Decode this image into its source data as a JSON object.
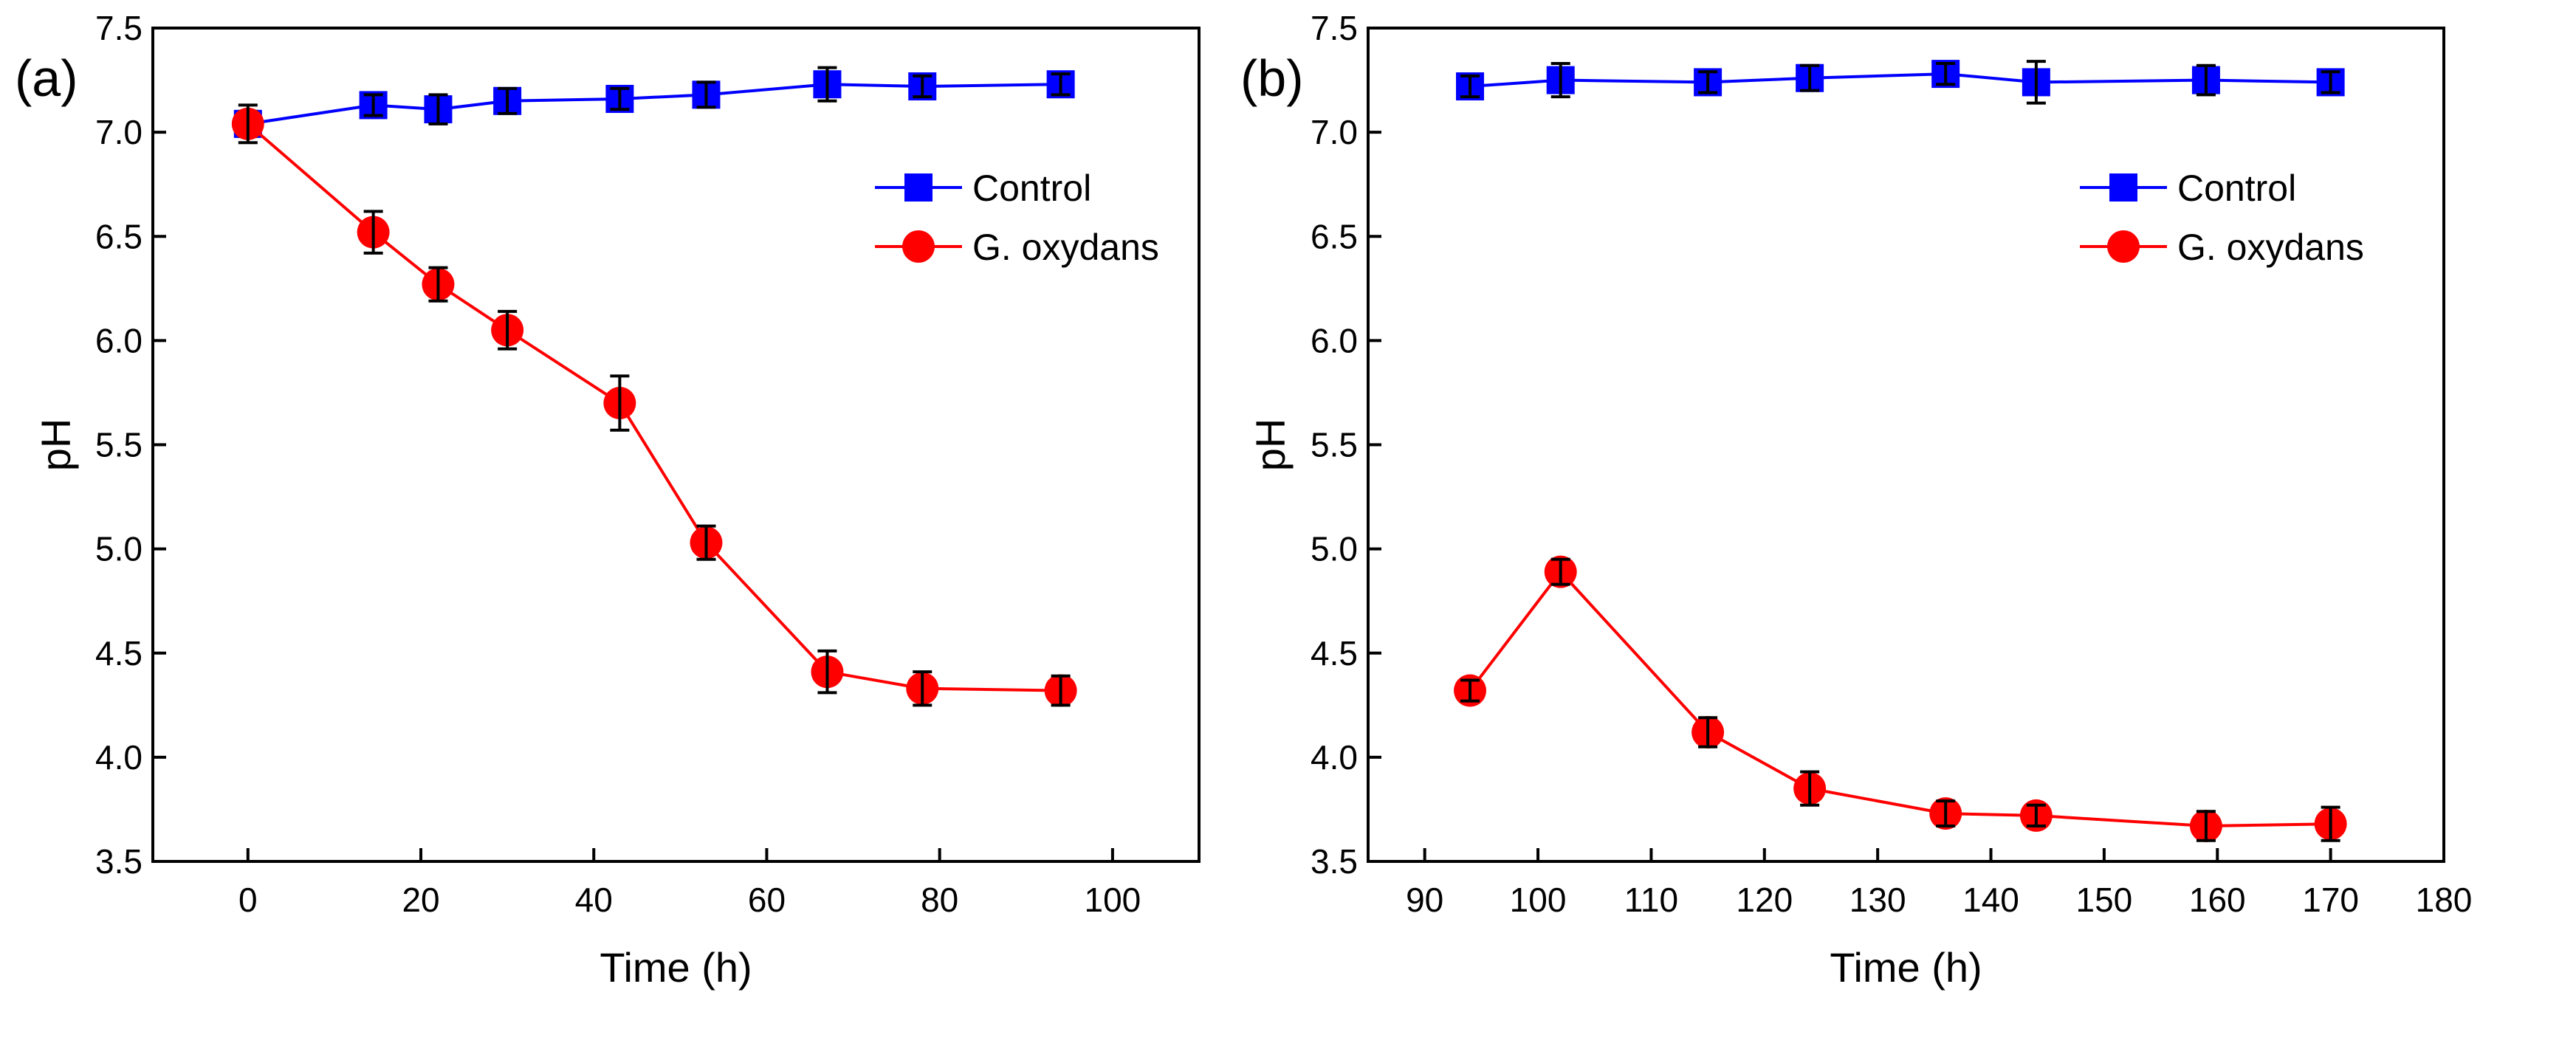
{
  "chart_data": [
    {
      "type": "line",
      "panel_label": "(a)",
      "xlabel": "Time (h)",
      "ylabel": "pH",
      "xlim": [
        -11,
        110
      ],
      "ylim": [
        3.5,
        7.5
      ],
      "xticks": [
        0,
        20,
        40,
        60,
        80,
        100
      ],
      "yticks": [
        "3.5",
        "4.0",
        "4.5",
        "5.0",
        "5.5",
        "6.0",
        "6.5",
        "7.0",
        "7.5"
      ],
      "legend_position": "top-right",
      "series": [
        {
          "name": "Control",
          "color": "#0000ff",
          "marker": "square",
          "x": [
            0,
            14.5,
            22,
            30,
            43,
            53,
            67,
            78,
            94
          ],
          "y": [
            7.04,
            7.13,
            7.11,
            7.15,
            7.16,
            7.18,
            7.23,
            7.22,
            7.23
          ],
          "err": [
            0.06,
            0.05,
            0.07,
            0.06,
            0.05,
            0.06,
            0.08,
            0.05,
            0.05
          ]
        },
        {
          "name": "G. oxydans",
          "color": "#ff0000",
          "marker": "circle",
          "x": [
            0,
            14.5,
            22,
            30,
            43,
            53,
            67,
            78,
            94
          ],
          "y": [
            7.04,
            6.52,
            6.27,
            6.05,
            5.7,
            5.03,
            4.41,
            4.33,
            4.32
          ],
          "err": [
            0.09,
            0.1,
            0.08,
            0.09,
            0.13,
            0.08,
            0.1,
            0.08,
            0.07
          ]
        }
      ]
    },
    {
      "type": "line",
      "panel_label": "(b)",
      "xlabel": "Time (h)",
      "ylabel": "pH",
      "xlim": [
        85,
        180
      ],
      "ylim": [
        3.5,
        7.5
      ],
      "xticks": [
        90,
        100,
        110,
        120,
        130,
        140,
        150,
        160,
        170,
        180
      ],
      "yticks": [
        "3.5",
        "4.0",
        "4.5",
        "5.0",
        "5.5",
        "6.0",
        "6.5",
        "7.0",
        "7.5"
      ],
      "legend_position": "top-right",
      "series": [
        {
          "name": "Control",
          "color": "#0000ff",
          "marker": "square",
          "x": [
            94,
            102,
            115,
            124,
            136,
            144,
            159,
            170
          ],
          "y": [
            7.22,
            7.25,
            7.24,
            7.26,
            7.28,
            7.24,
            7.25,
            7.24
          ],
          "err": [
            0.05,
            0.08,
            0.05,
            0.06,
            0.05,
            0.1,
            0.07,
            0.05
          ]
        },
        {
          "name": "G. oxydans",
          "color": "#ff0000",
          "marker": "circle",
          "x": [
            94,
            102,
            115,
            124,
            136,
            144,
            159,
            170
          ],
          "y": [
            4.32,
            4.89,
            4.12,
            3.85,
            3.73,
            3.72,
            3.67,
            3.68
          ],
          "err": [
            0.05,
            0.06,
            0.07,
            0.08,
            0.06,
            0.05,
            0.07,
            0.08
          ]
        }
      ]
    }
  ]
}
